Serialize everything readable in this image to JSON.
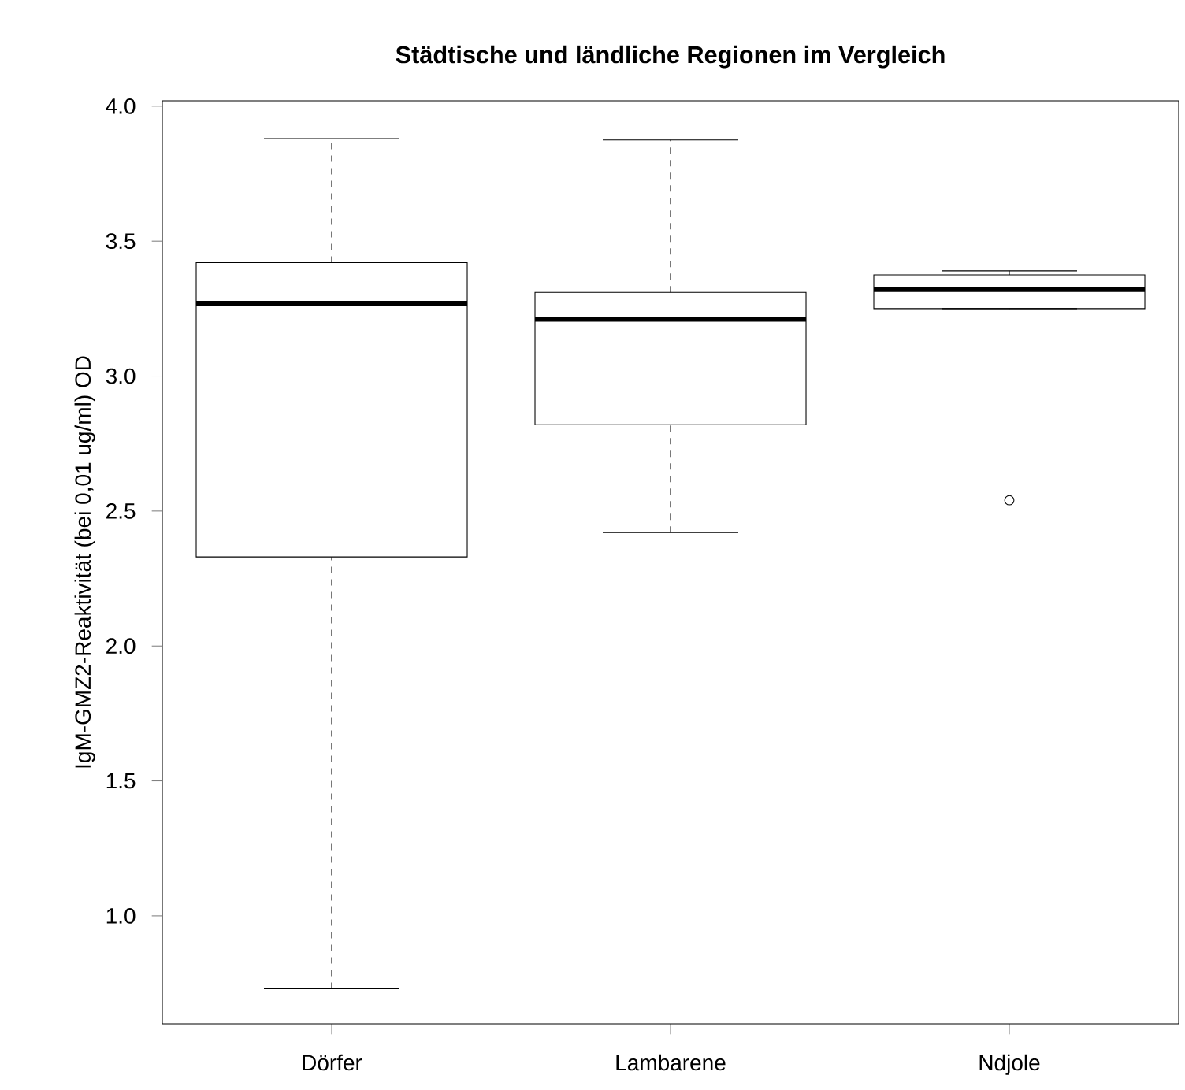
{
  "chart_data": {
    "type": "box",
    "title": "Städtische und ländliche Regionen im Vergleich",
    "ylabel": "IgM-GMZ2-Reaktivität (bei 0,01 ug/ml) OD",
    "categories": [
      "Dörfer",
      "Lambarene",
      "Ndjole"
    ],
    "boxes": [
      {
        "low": 0.73,
        "q1": 2.33,
        "median": 3.27,
        "q3": 3.42,
        "high": 3.88
      },
      {
        "low": 2.42,
        "q1": 2.82,
        "median": 3.21,
        "q3": 3.31,
        "high": 3.875
      },
      {
        "low": 3.25,
        "q1": 3.25,
        "median": 3.32,
        "q3": 3.375,
        "high": 3.39,
        "outliers": [
          2.54
        ]
      }
    ],
    "ylim": [
      0.6,
      4.02
    ],
    "yticks": [
      {
        "value": 1,
        "label": "1.0"
      },
      {
        "value": 1.5,
        "label": "1.5"
      },
      {
        "value": 2,
        "label": "2.0"
      },
      {
        "value": 2.5,
        "label": "2.5"
      },
      {
        "value": 3,
        "label": "3.0"
      },
      {
        "value": 3.5,
        "label": "3.5"
      },
      {
        "value": 4,
        "label": "4.0"
      }
    ]
  }
}
